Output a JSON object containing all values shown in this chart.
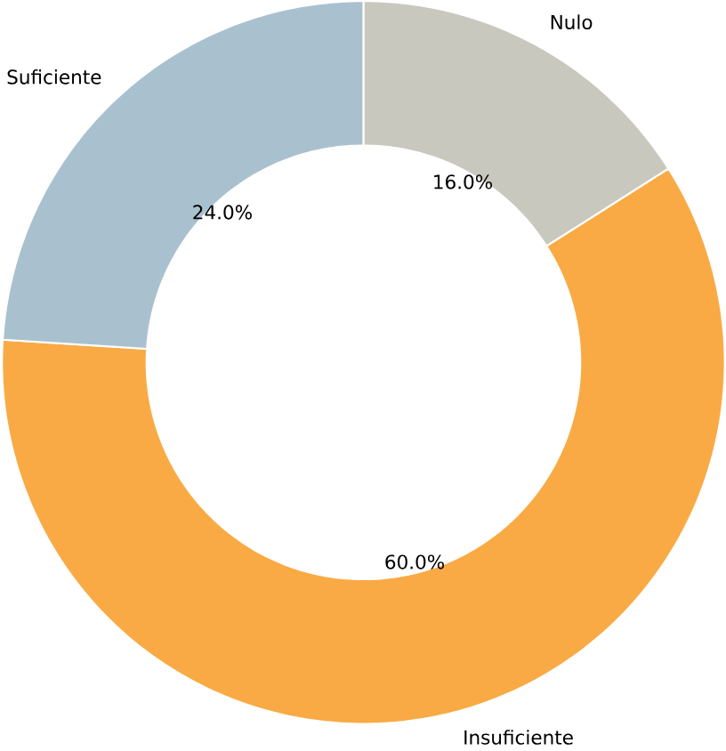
{
  "chart_data": {
    "type": "donut",
    "categories": [
      "Nulo",
      "Insuficiente",
      "Suficiente"
    ],
    "values": [
      16.0,
      60.0,
      24.0
    ],
    "value_labels": [
      "16.0%",
      "60.0%",
      "24.0%"
    ],
    "colors": [
      "#c9c8be",
      "#f9aa44",
      "#a9c1cf"
    ]
  }
}
